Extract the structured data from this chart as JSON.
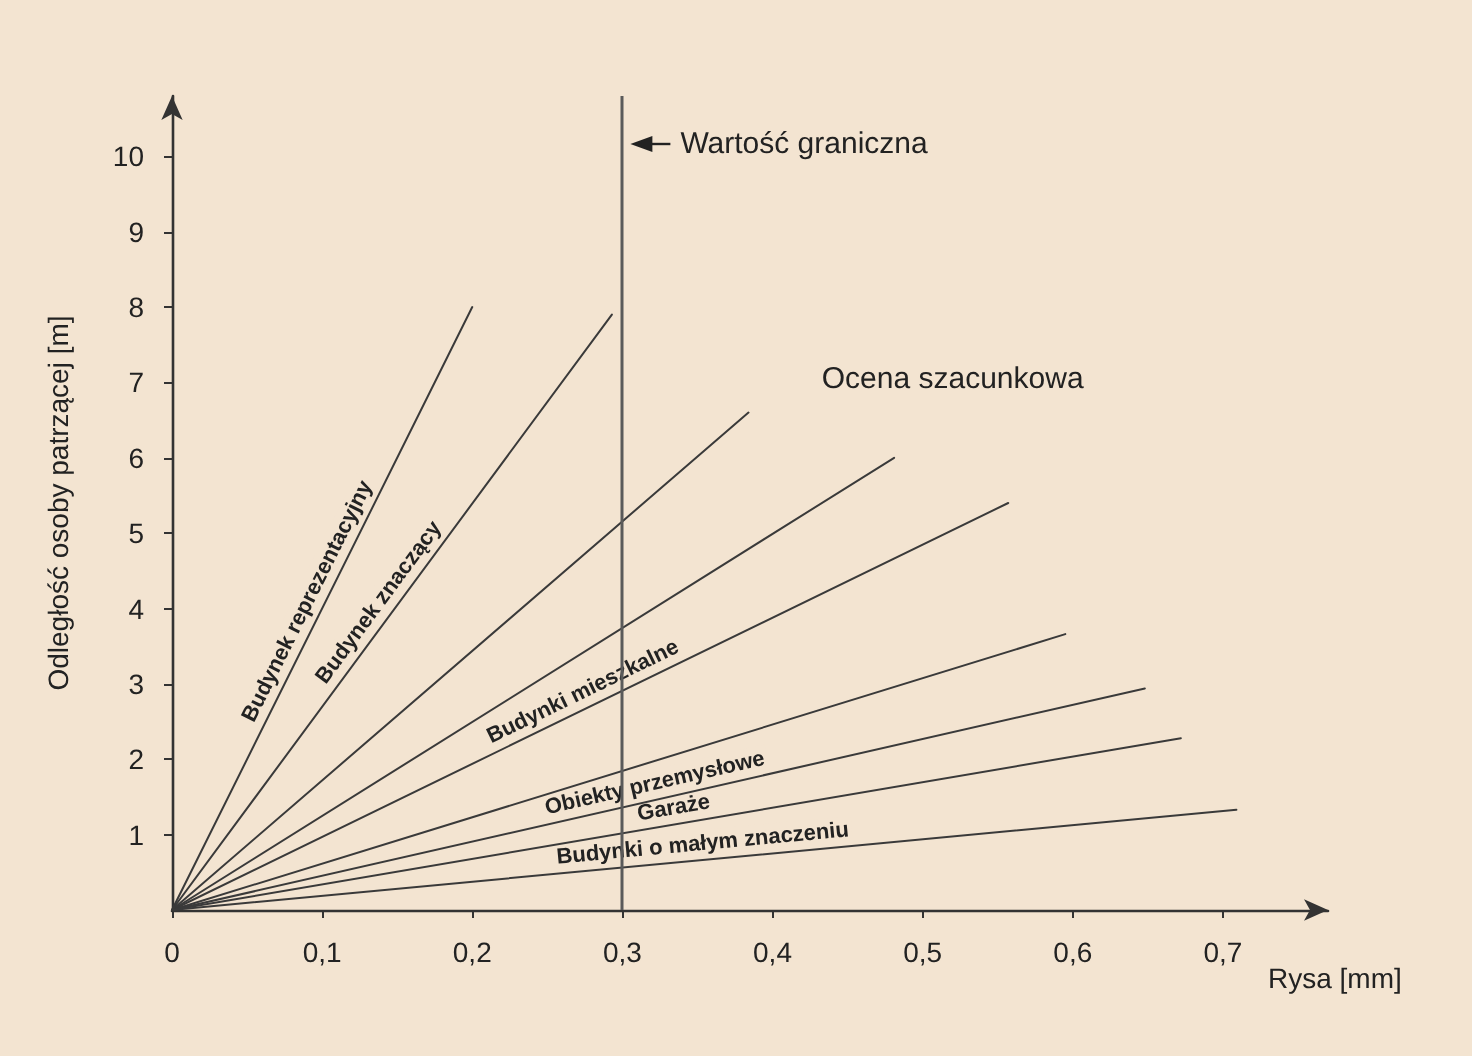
{
  "chart_data": {
    "type": "line",
    "xlabel": "Rysa [mm]",
    "ylabel": "Odległość osoby patrzącej [m]",
    "xlim": [
      0,
      0.77
    ],
    "ylim": [
      0,
      10.8
    ],
    "xticks": [
      {
        "value": 0,
        "label": "0"
      },
      {
        "value": 0.1,
        "label": "0,1"
      },
      {
        "value": 0.2,
        "label": "0,2"
      },
      {
        "value": 0.3,
        "label": "0,3"
      },
      {
        "value": 0.4,
        "label": "0,4"
      },
      {
        "value": 0.5,
        "label": "0,5"
      },
      {
        "value": 0.6,
        "label": "0,6"
      },
      {
        "value": 0.7,
        "label": "0,7"
      }
    ],
    "yticks": [
      1,
      2,
      3,
      4,
      5,
      6,
      7,
      8,
      9,
      10
    ],
    "grid": false,
    "marker": "none",
    "line_style": "solid",
    "series": [
      {
        "name": "Budynek reprezentacyjny",
        "color": "#3a3a3a",
        "x": [
          0,
          0.2
        ],
        "values": [
          0,
          8.0
        ]
      },
      {
        "name": "Budynek znaczący",
        "color": "#3a3a3a",
        "x": [
          0,
          0.293
        ],
        "values": [
          0,
          7.9
        ]
      },
      {
        "color": "#3a3a3a",
        "x": [
          0,
          0.384
        ],
        "values": [
          0,
          6.6
        ]
      },
      {
        "color": "#3a3a3a",
        "x": [
          0,
          0.481
        ],
        "values": [
          0,
          6.0
        ]
      },
      {
        "name": "Budynki mieszkalne",
        "color": "#3a3a3a",
        "x": [
          0,
          0.557
        ],
        "values": [
          0,
          5.4
        ]
      },
      {
        "color": "#3a3a3a",
        "x": [
          0,
          0.595
        ],
        "values": [
          0,
          3.66
        ]
      },
      {
        "name": "Obiekty przemysłowe",
        "color": "#3a3a3a",
        "x": [
          0,
          0.648
        ],
        "values": [
          0,
          2.94
        ]
      },
      {
        "name": "Garaże",
        "color": "#3a3a3a",
        "x": [
          0,
          0.672
        ],
        "values": [
          0,
          2.28
        ]
      },
      {
        "name": "Budynki o małym znaczeniu",
        "color": "#3a3a3a",
        "x": [
          0,
          0.709
        ],
        "values": [
          0,
          1.33
        ]
      }
    ],
    "ref_lines": [
      {
        "axis": "x",
        "value": 0.3,
        "label": "Wartość graniczna",
        "color": "#5a5a5a"
      }
    ],
    "annotations": [
      "Ocena szacunkowa"
    ]
  }
}
